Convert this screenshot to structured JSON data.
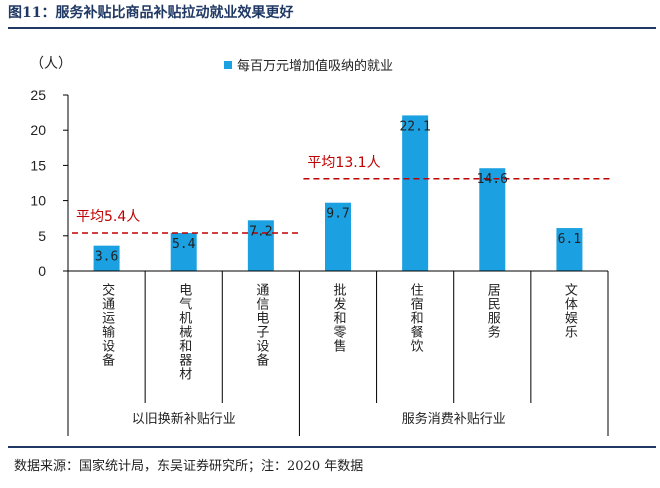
{
  "figure": {
    "title": "图11：服务补贴比商品补贴拉动就业效果更好",
    "source": "数据来源：国家统计局，东吴证券研究所；注：2020 年数据"
  },
  "chart_data": {
    "type": "bar",
    "unit_label": "（人）",
    "categories": [
      "交通运输设备",
      "电气机械和器材",
      "通信电子设备",
      "批发和零售",
      "住宿和餐饮",
      "居民服务",
      "文体娱乐"
    ],
    "series": [
      {
        "name": "每百万元增加值吸纳的就业",
        "values": [
          3.6,
          5.4,
          7.2,
          9.7,
          22.1,
          14.6,
          6.1
        ],
        "color": "#1ba1e2"
      }
    ],
    "data_labels": [
      "3.6",
      "5.4",
      "7.2",
      "9.7",
      "22.1",
      "14.6",
      "6.1"
    ],
    "ylim": [
      0,
      25
    ],
    "yticks": [
      "0",
      "5",
      "10",
      "15",
      "20",
      "25"
    ],
    "ytick_values": [
      0,
      5,
      10,
      15,
      20,
      25
    ],
    "groups": [
      {
        "label": "以旧换新补贴行业",
        "start": 0,
        "end": 2
      },
      {
        "label": "服务消费补贴行业",
        "start": 3,
        "end": 6
      }
    ],
    "averages": [
      {
        "label": "平均5.4人",
        "value": 5.4,
        "start": 0,
        "end": 2
      },
      {
        "label": "平均13.1人",
        "value": 13.1,
        "start": 3,
        "end": 6
      }
    ],
    "avg_color": "#c00000",
    "legend_position": "top-center",
    "grid": false
  }
}
